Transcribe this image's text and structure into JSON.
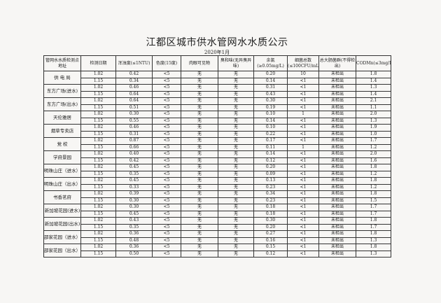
{
  "title": "江都区城市供水管网水水质公示",
  "subtitle": "2020年1月",
  "headers": [
    "管网水水质检测点地址",
    "检测日期",
    "浑浊度(≤1NTU)",
    "色度(15度)",
    "肉眼可见物",
    "臭和味(无异臭异味)",
    "余氯(≥0.05mg/L)",
    "细菌总数(≤100CFU/mL)",
    "总大肠菌群(不得检出)",
    "CODMn(≤3mg/L)"
  ],
  "sites": [
    {
      "name": "供 电 局",
      "rows": [
        [
          "1.02",
          "0.42",
          "<5",
          "无",
          "无",
          "0.20",
          "10",
          "未检出",
          "1.8"
        ],
        [
          "1.15",
          "0.34",
          "<5",
          "无",
          "无",
          "0.14",
          "<1",
          "未检出",
          "1.4"
        ]
      ]
    },
    {
      "name": "东方广场(进水)",
      "rows": [
        [
          "1.02",
          "0.46",
          "<5",
          "无",
          "无",
          "0.31",
          "<1",
          "未检出",
          "1.3"
        ],
        [
          "1.15",
          "0.64",
          "<5",
          "无",
          "无",
          "0.43",
          "<1",
          "未检出",
          "1.4"
        ]
      ]
    },
    {
      "name": "东方广场(出水)",
      "rows": [
        [
          "1.02",
          "0.64",
          "<5",
          "无",
          "无",
          "0.30",
          "<1",
          "未检出",
          "2.1"
        ],
        [
          "1.15",
          "0.51",
          "<5",
          "无",
          "无",
          "0.19",
          "<1",
          "未检出",
          "1.1"
        ]
      ]
    },
    {
      "name": "天伦雅居",
      "rows": [
        [
          "1.02",
          "0.30",
          "<5",
          "无",
          "无",
          "0.10",
          "1",
          "未检出",
          "2.0"
        ],
        [
          "1.15",
          "0.55",
          "<5",
          "无",
          "无",
          "0.14",
          "<1",
          "未检出",
          "1.3"
        ]
      ]
    },
    {
      "name": "烟草专卖店",
      "rows": [
        [
          "1.02",
          "0.46",
          "<5",
          "无",
          "无",
          "0.10",
          "<1",
          "未检出",
          "1.9"
        ],
        [
          "1.15",
          "0.31",
          "<5",
          "无",
          "无",
          "0.22",
          "<1",
          "未检出",
          "1.0"
        ]
      ]
    },
    {
      "name": "党 校",
      "rows": [
        [
          "1.02",
          "0.87",
          "<5",
          "无",
          "无",
          "0.17",
          "<1",
          "未检出",
          "1.7"
        ],
        [
          "1.15",
          "0.66",
          "<5",
          "无",
          "无",
          "0.11",
          "1",
          "未检出",
          "1.2"
        ]
      ]
    },
    {
      "name": "学府景园",
      "rows": [
        [
          "1.02",
          "0.40",
          "<5",
          "无",
          "无",
          "0.14",
          "<1",
          "未检出",
          "2.0"
        ],
        [
          "1.15",
          "0.42",
          "<5",
          "无",
          "无",
          "0.12",
          "<1",
          "未检出",
          "1.6"
        ]
      ]
    },
    {
      "name": "明珠山庄（进水）",
      "rows": [
        [
          "1.02",
          "0.45",
          "<5",
          "无",
          "无",
          "0.20",
          "<1",
          "未检出",
          "1.8"
        ],
        [
          "1.15",
          "0.35",
          "<5",
          "无",
          "无",
          "0.09",
          "<1",
          "未检出",
          "1.2"
        ]
      ]
    },
    {
      "name": "明珠山庄（出水）",
      "rows": [
        [
          "1.02",
          "0.45",
          "<5",
          "无",
          "无",
          "0.13",
          "<1",
          "未检出",
          "1.8"
        ],
        [
          "1.15",
          "0.33",
          "<5",
          "无",
          "无",
          "0.23",
          "<1",
          "未检出",
          "1.2"
        ]
      ]
    },
    {
      "name": "书香茗府",
      "rows": [
        [
          "1.02",
          "0.39",
          "<5",
          "无",
          "无",
          "0.34",
          "<1",
          "未检出",
          "1.8"
        ],
        [
          "1.15",
          "0.30",
          "<5",
          "无",
          "无",
          "0.23",
          "<1",
          "未检出",
          "1.5"
        ]
      ]
    },
    {
      "name": "新加坡花园(进水)",
      "rows": [
        [
          "1.02",
          "0.30",
          "<5",
          "无",
          "无",
          "0.18",
          "<1",
          "未检出",
          "1.7"
        ],
        [
          "1.15",
          "0.45",
          "<5",
          "无",
          "无",
          "0.18",
          "<1",
          "未检出",
          "1.7"
        ]
      ]
    },
    {
      "name": "新加坡花园(出水)",
      "rows": [
        [
          "1.02",
          "0.43",
          "<5",
          "无",
          "无",
          "0.30",
          "<1",
          "未检出",
          "1.8"
        ],
        [
          "1.15",
          "0.35",
          "<5",
          "无",
          "无",
          "0.20",
          "<1",
          "未检出",
          "1.7"
        ]
      ]
    },
    {
      "name": "邵家花园（进水）",
      "rows": [
        [
          "1.02",
          "0.36",
          "<5",
          "无",
          "无",
          "0.27",
          "<1",
          "未检出",
          "1.8"
        ],
        [
          "1.15",
          "0.48",
          "<5",
          "无",
          "无",
          "0.16",
          "<1",
          "未检出",
          "1.3"
        ]
      ]
    },
    {
      "name": "邵家花园（出水）",
      "rows": [
        [
          "1.02",
          "0.36",
          "<5",
          "无",
          "无",
          "0.15",
          "<1",
          "未检出",
          "1.8"
        ],
        [
          "1.15",
          "0.50",
          "<5",
          "无",
          "无",
          "0.12",
          "<1",
          "未检出",
          "1.3"
        ]
      ]
    }
  ]
}
